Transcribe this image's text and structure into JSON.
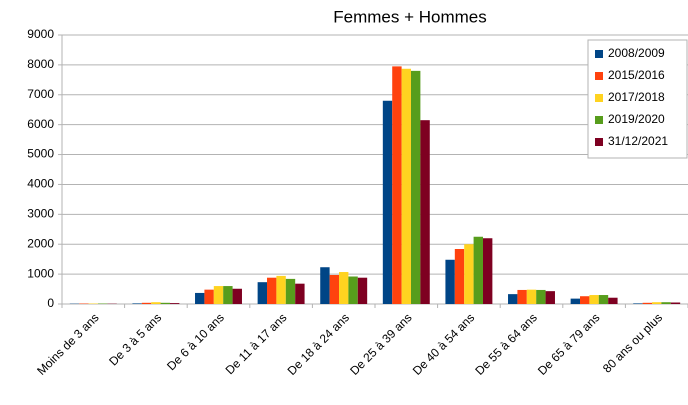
{
  "chart_data": {
    "type": "bar",
    "title": "Femmes + Hommes",
    "categories": [
      "Moins de 3 ans",
      "De 3 à 5 ans",
      "De 6 à 10 ans",
      "De 11 à 17 ans",
      "De 18 à 24 ans",
      "De 25 à 39 ans",
      "De 40 à 54 ans",
      "De 55 à 64 ans",
      "De 65 à 79 ans",
      "80 ans ou plus"
    ],
    "series": [
      {
        "name": "2008/2009",
        "color": "#004586",
        "values": [
          10,
          20,
          370,
          730,
          1230,
          6800,
          1480,
          330,
          180,
          20
        ]
      },
      {
        "name": "2015/2016",
        "color": "#ff420e",
        "values": [
          15,
          40,
          480,
          880,
          970,
          7950,
          1840,
          470,
          260,
          40
        ]
      },
      {
        "name": "2017/2018",
        "color": "#ffd320",
        "values": [
          15,
          60,
          600,
          940,
          1070,
          7870,
          2000,
          480,
          300,
          60
        ]
      },
      {
        "name": "2019/2020",
        "color": "#579d1c",
        "values": [
          15,
          40,
          600,
          840,
          920,
          7800,
          2250,
          470,
          300,
          60
        ]
      },
      {
        "name": "31/12/2021",
        "color": "#7e0021",
        "values": [
          10,
          30,
          510,
          680,
          880,
          6150,
          2200,
          430,
          210,
          50
        ]
      }
    ],
    "ylim": [
      0,
      9000
    ],
    "yticks": [
      0,
      1000,
      2000,
      3000,
      4000,
      5000,
      6000,
      7000,
      8000,
      9000
    ],
    "grid": true,
    "legend": "top-right"
  }
}
